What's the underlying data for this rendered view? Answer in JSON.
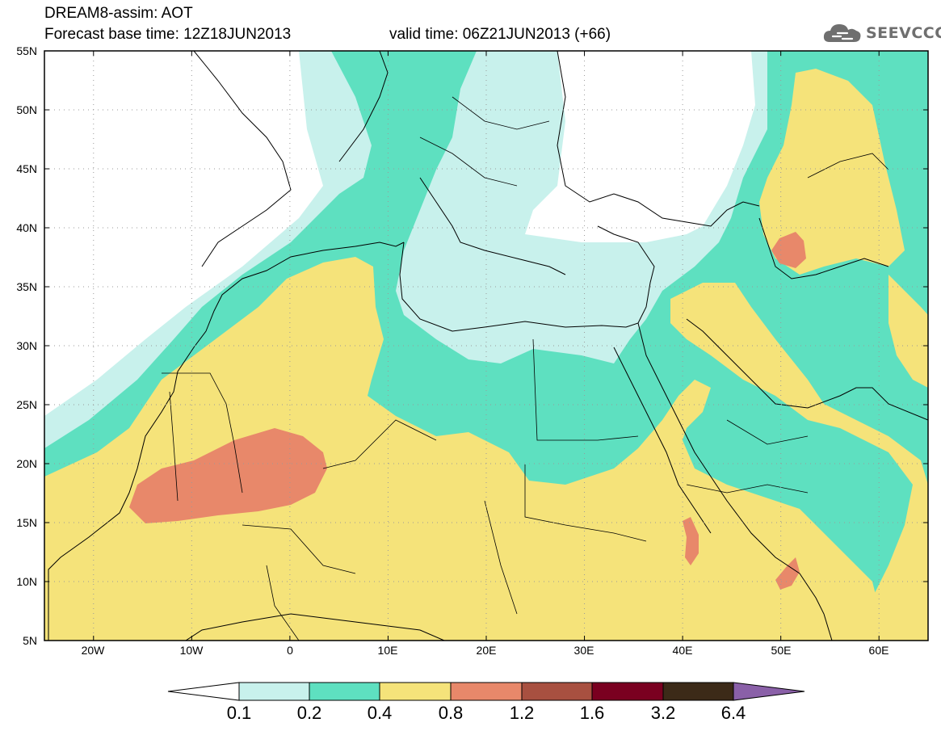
{
  "header": {
    "title": "DREAM8-assim: AOT",
    "base_time": "Forecast base time: 12Z18JUN2013",
    "valid_time": "valid time: 06Z21JUN2013 (+66)"
  },
  "logo": {
    "text": "SEEVCCC",
    "icon": "cloud-icon"
  },
  "map": {
    "lat_labels": [
      "55N",
      "50N",
      "45N",
      "40N",
      "35N",
      "30N",
      "25N",
      "20N",
      "15N",
      "10N",
      "5N"
    ],
    "lon_labels": [
      "20W",
      "10W",
      "0",
      "10E",
      "20E",
      "30E",
      "40E",
      "50E",
      "60E"
    ],
    "lat_range": [
      5,
      55
    ],
    "lon_range": [
      -25,
      65
    ]
  },
  "colorbar": {
    "labels": [
      "0.1",
      "0.2",
      "0.4",
      "0.8",
      "1.2",
      "1.6",
      "3.2",
      "6.4"
    ],
    "colors": [
      "#ffffff",
      "#c8f1ec",
      "#5ee0c0",
      "#f5e37a",
      "#e8886a",
      "#a85040",
      "#7a0020",
      "#3c2a18",
      "#8a60a8"
    ]
  },
  "colors": {
    "aot_0_1": "#c8f1ec",
    "aot_0_2": "#5ee0c0",
    "aot_0_4": "#f5e37a",
    "aot_0_8": "#e8886a",
    "aot_1_2": "#a85040",
    "aot_1_6": "#7a0020",
    "aot_3_2": "#3c2a18",
    "aot_6_4": "#8a60a8"
  }
}
